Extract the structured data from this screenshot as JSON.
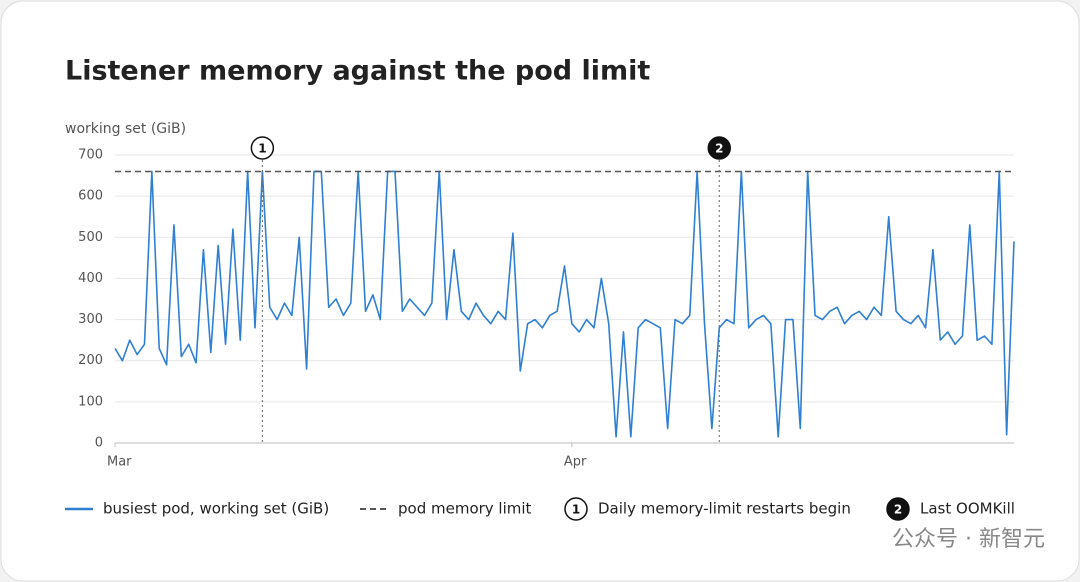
{
  "chart_data": {
    "type": "line",
    "title": "Listener memory against the pod limit",
    "y_label": "working set (GiB)",
    "x": [
      0,
      0.5,
      1,
      1.5,
      2,
      2.5,
      3,
      3.5,
      4,
      4.5,
      5,
      5.5,
      6,
      6.5,
      7,
      7.5,
      8,
      8.5,
      9,
      9.5,
      10,
      10.5,
      11,
      11.5,
      12,
      12.5,
      13,
      13.5,
      14,
      14.5,
      15,
      15.5,
      16,
      16.5,
      17,
      17.5,
      18,
      18.5,
      19,
      19.5,
      20,
      20.5,
      21,
      21.5,
      22,
      22.5,
      23,
      23.5,
      24,
      24.5,
      25,
      25.5,
      26,
      26.5,
      27,
      27.5,
      28,
      28.5,
      29,
      29.5,
      30,
      30.5,
      31,
      31.5,
      32,
      32.5,
      33,
      33.5,
      34,
      34.5,
      35,
      35.5,
      36,
      36.5,
      37,
      37.5,
      38,
      38.5,
      39,
      39.5,
      40,
      40.5,
      41,
      41.5,
      42,
      42.5,
      43,
      43.5,
      44,
      44.5,
      45,
      45.5,
      46,
      46.5,
      47,
      47.5,
      48,
      48.5,
      49,
      49.5,
      50,
      50.5,
      51,
      51.5,
      52,
      52.5,
      53,
      53.5,
      54,
      54.5,
      55,
      55.5,
      56,
      56.5,
      57,
      57.5,
      58,
      58.5,
      59,
      59.5,
      60,
      60.5,
      61
    ],
    "series": [
      {
        "name": "busiest pod, working set (GiB)",
        "color": "#2f7fd3",
        "values": [
          230,
          200,
          250,
          215,
          240,
          660,
          230,
          190,
          530,
          210,
          240,
          195,
          470,
          220,
          480,
          240,
          520,
          250,
          660,
          280,
          660,
          330,
          300,
          340,
          310,
          500,
          180,
          660,
          660,
          330,
          350,
          310,
          340,
          660,
          320,
          360,
          300,
          660,
          660,
          320,
          350,
          330,
          310,
          340,
          660,
          300,
          470,
          320,
          300,
          340,
          310,
          290,
          320,
          300,
          510,
          175,
          290,
          300,
          280,
          310,
          320,
          430,
          290,
          270,
          300,
          280,
          400,
          290,
          15,
          270,
          15,
          280,
          300,
          290,
          280,
          35,
          300,
          290,
          310,
          660,
          290,
          35,
          280,
          300,
          290,
          660,
          280,
          300,
          310,
          290,
          15,
          300,
          300,
          35,
          660,
          310,
          300,
          320,
          330,
          290,
          310,
          320,
          300,
          330,
          310,
          550,
          320,
          300,
          290,
          310,
          280,
          470,
          250,
          270,
          240,
          260,
          530,
          250,
          260,
          240,
          660,
          20,
          490
        ]
      }
    ],
    "limit": {
      "name": "pod memory limit",
      "value": 660,
      "color": "#555555"
    },
    "annotations": [
      {
        "label": "1",
        "x": 10,
        "text": "Daily memory-limit restarts begin"
      },
      {
        "label": "2",
        "x": 41,
        "text": "Last OOMKill"
      }
    ],
    "xlim": [
      0,
      61
    ],
    "xticks": [
      {
        "value": 0,
        "label": "Mar"
      },
      {
        "value": 31,
        "label": "Apr"
      }
    ],
    "ylim": [
      0,
      700
    ],
    "yticks": [
      0,
      100,
      200,
      300,
      400,
      500,
      600,
      700
    ],
    "grid": true
  },
  "watermark": "公众号 · 新智元"
}
